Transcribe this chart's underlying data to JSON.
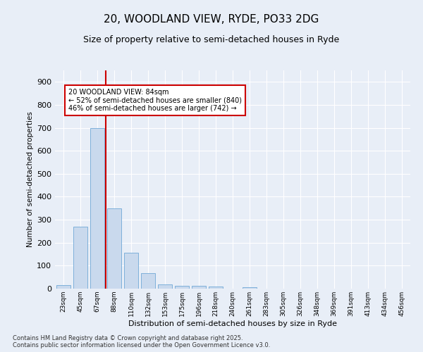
{
  "title": "20, WOODLAND VIEW, RYDE, PO33 2DG",
  "subtitle": "Size of property relative to semi-detached houses in Ryde",
  "xlabel": "Distribution of semi-detached houses by size in Ryde",
  "ylabel": "Number of semi-detached properties",
  "bar_color": "#c9d9ed",
  "bar_edge_color": "#6fa8d6",
  "background_color": "#e8eef7",
  "grid_color": "#ffffff",
  "categories": [
    "23sqm",
    "45sqm",
    "67sqm",
    "88sqm",
    "110sqm",
    "132sqm",
    "153sqm",
    "175sqm",
    "196sqm",
    "218sqm",
    "240sqm",
    "261sqm",
    "283sqm",
    "305sqm",
    "326sqm",
    "348sqm",
    "369sqm",
    "391sqm",
    "413sqm",
    "434sqm",
    "456sqm"
  ],
  "values": [
    15,
    270,
    700,
    350,
    155,
    68,
    18,
    12,
    12,
    8,
    0,
    5,
    0,
    0,
    0,
    0,
    0,
    0,
    0,
    0,
    0
  ],
  "vline_color": "#cc0000",
  "annotation_text": "20 WOODLAND VIEW: 84sqm\n← 52% of semi-detached houses are smaller (840)\n46% of semi-detached houses are larger (742) →",
  "annotation_box_color": "#ffffff",
  "annotation_box_edge": "#cc0000",
  "footer": "Contains HM Land Registry data © Crown copyright and database right 2025.\nContains public sector information licensed under the Open Government Licence v3.0.",
  "ylim": [
    0,
    950
  ],
  "yticks": [
    0,
    100,
    200,
    300,
    400,
    500,
    600,
    700,
    800,
    900
  ]
}
